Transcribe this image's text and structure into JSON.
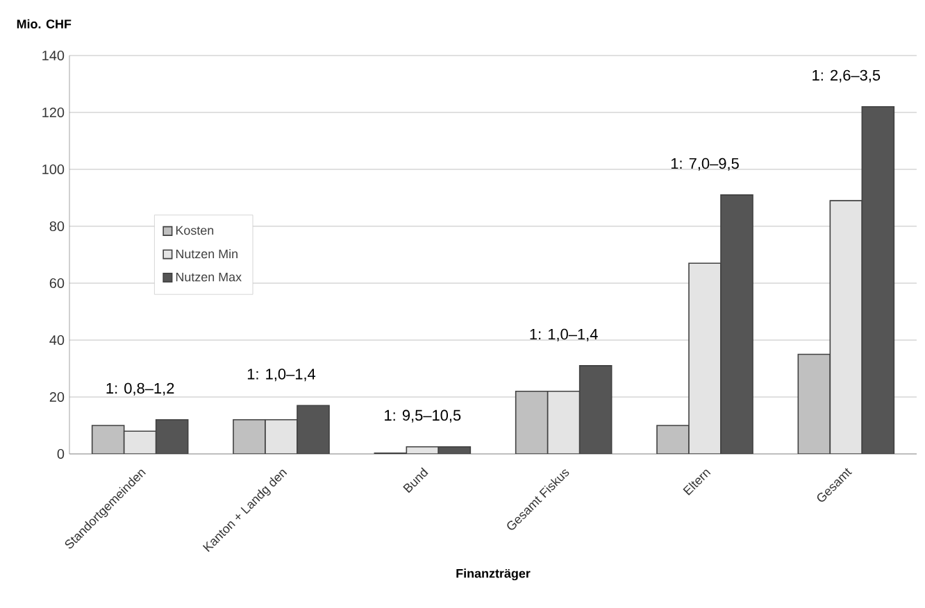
{
  "chart_data": {
    "type": "bar",
    "ylabel": "Mio. CHF",
    "xlabel": "Finanzträger",
    "categories": [
      "Standortgemeinden",
      "Kanton + Landg den",
      "Bund",
      "Gesamt Fiskus",
      "Eltern",
      "Gesamt"
    ],
    "series": [
      {
        "name": "Kosten",
        "color": "#c0c0c0",
        "values": [
          10,
          12,
          0.3,
          22,
          10,
          35
        ]
      },
      {
        "name": "Nutzen Min",
        "color": "#e4e4e4",
        "values": [
          8,
          12,
          2.5,
          22,
          67,
          89
        ]
      },
      {
        "name": "Nutzen Max",
        "color": "#555555",
        "values": [
          12,
          17,
          2.5,
          31,
          91,
          122
        ]
      }
    ],
    "ylim": [
      0,
      140
    ],
    "yticks": [
      0,
      20,
      40,
      60,
      80,
      100,
      120,
      140
    ],
    "grid": "y",
    "legend": "left",
    "annotations": [
      "1: 0,8–1,2",
      "1: 1,0–1,4",
      "1: 9,5–10,5",
      "1: 1,0–1,4",
      "1: 7,0–9,5",
      "1: 2,6–3,5"
    ]
  }
}
